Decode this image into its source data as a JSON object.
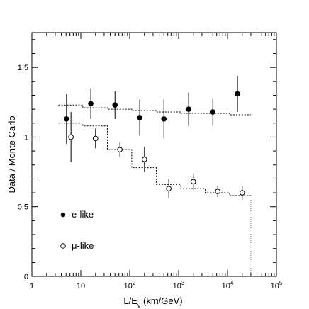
{
  "chart_data": {
    "type": "scatter",
    "xlabel": "L/E",
    "xlabel_sub": "ν",
    "xlabel_unit": " (km/GeV)",
    "ylabel": "Data / Monte Carlo",
    "x_scale": "log",
    "xlim": [
      1,
      100000
    ],
    "ylim": [
      0,
      1.75
    ],
    "x_ticks": [
      {
        "value": 1,
        "base": "1",
        "exp": ""
      },
      {
        "value": 10,
        "base": "10",
        "exp": ""
      },
      {
        "value": 100,
        "base": "10",
        "exp": "2"
      },
      {
        "value": 1000,
        "base": "10",
        "exp": "3"
      },
      {
        "value": 10000,
        "base": "10",
        "exp": "4"
      },
      {
        "value": 100000,
        "base": "10",
        "exp": "5"
      }
    ],
    "y_ticks": [
      {
        "value": 0,
        "label": "0"
      },
      {
        "value": 0.5,
        "label": "0.5"
      },
      {
        "value": 1,
        "label": "1"
      },
      {
        "value": 1.5,
        "label": "1.5"
      }
    ],
    "grid": false,
    "legend": "bottom-left",
    "series": [
      {
        "name": "e-like",
        "marker": "filled-circle",
        "points": [
          {
            "x": 5.1,
            "y": 1.13,
            "err": 0.18
          },
          {
            "x": 16,
            "y": 1.24,
            "err": 0.11
          },
          {
            "x": 50,
            "y": 1.23,
            "err": 0.1
          },
          {
            "x": 160,
            "y": 1.14,
            "err": 0.13
          },
          {
            "x": 500,
            "y": 1.13,
            "err": 0.14
          },
          {
            "x": 1600,
            "y": 1.2,
            "err": 0.12
          },
          {
            "x": 5000,
            "y": 1.18,
            "err": 0.1
          },
          {
            "x": 16000,
            "y": 1.31,
            "err": 0.13
          }
        ],
        "mc_step": [
          {
            "x0": 3.5,
            "x1": 11,
            "y": 1.23
          },
          {
            "x0": 11,
            "x1": 35,
            "y": 1.21
          },
          {
            "x0": 35,
            "x1": 110,
            "y": 1.2
          },
          {
            "x0": 110,
            "x1": 350,
            "y": 1.19
          },
          {
            "x0": 350,
            "x1": 1100,
            "y": 1.18
          },
          {
            "x0": 1100,
            "x1": 3500,
            "y": 1.17
          },
          {
            "x0": 3500,
            "x1": 11000,
            "y": 1.17
          },
          {
            "x0": 11000,
            "x1": 30000,
            "y": 1.16
          }
        ]
      },
      {
        "name": "μ-like",
        "marker": "open-circle",
        "points": [
          {
            "x": 6.3,
            "y": 1.0,
            "err": 0.18
          },
          {
            "x": 20,
            "y": 0.99,
            "err": 0.07
          },
          {
            "x": 63,
            "y": 0.91,
            "err": 0.05
          },
          {
            "x": 200,
            "y": 0.84,
            "err": 0.09
          },
          {
            "x": 630,
            "y": 0.63,
            "err": 0.07
          },
          {
            "x": 2000,
            "y": 0.68,
            "err": 0.06
          },
          {
            "x": 6300,
            "y": 0.61,
            "err": 0.04
          },
          {
            "x": 20000,
            "y": 0.6,
            "err": 0.05
          }
        ],
        "mc_step": [
          {
            "x0": 3.5,
            "x1": 11,
            "y": 1.1
          },
          {
            "x0": 11,
            "x1": 35,
            "y": 1.08
          },
          {
            "x0": 35,
            "x1": 110,
            "y": 0.91
          },
          {
            "x0": 110,
            "x1": 350,
            "y": 0.78
          },
          {
            "x0": 350,
            "x1": 1100,
            "y": 0.66
          },
          {
            "x0": 1100,
            "x1": 3500,
            "y": 0.63
          },
          {
            "x0": 3500,
            "x1": 11000,
            "y": 0.6
          },
          {
            "x0": 11000,
            "x1": 30000,
            "y": 0.58
          }
        ]
      }
    ]
  }
}
